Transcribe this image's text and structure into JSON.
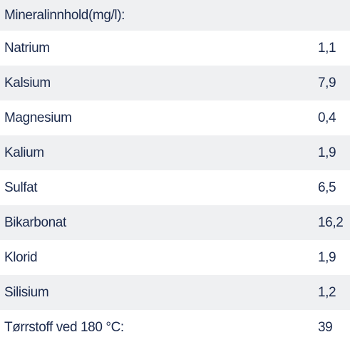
{
  "table": {
    "title": "Mineralinnhold(mg/l):",
    "rows": [
      [
        "Natrium",
        "1,1"
      ],
      [
        "Kalsium",
        "7,9"
      ],
      [
        "Magnesium",
        "0,4"
      ],
      [
        "Kalium",
        "1,9"
      ],
      [
        "Sulfat",
        "6,5"
      ],
      [
        "Bikarbonat",
        "16,2"
      ],
      [
        "Klorid",
        "1,9"
      ],
      [
        "Silisium",
        "1,2"
      ],
      [
        "Tørrstoff ved 180 °C:",
        "39"
      ]
    ]
  }
}
